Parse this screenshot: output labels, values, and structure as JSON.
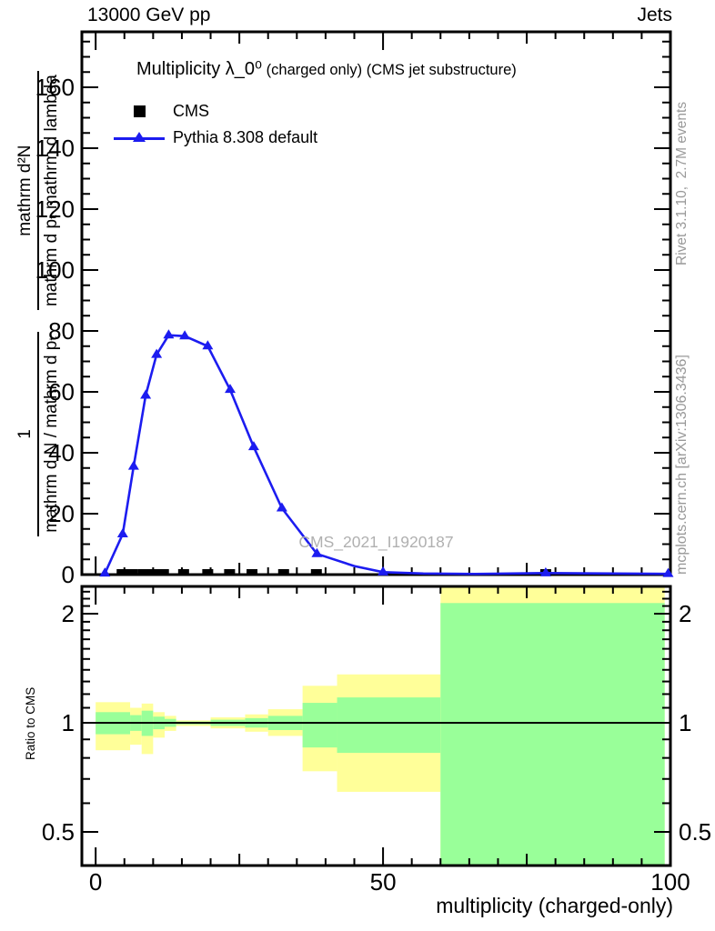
{
  "header": {
    "left": "13000 GeV pp",
    "right": "Jets"
  },
  "title": {
    "main": "Multiplicity λ_0⁰",
    "sub": " (charged only) (CMS jet substructure)"
  },
  "legend": [
    {
      "label": "CMS",
      "marker": "black-square"
    },
    {
      "label": "Pythia 8.308 default",
      "marker": "blue-line-triangle"
    }
  ],
  "watermark": "CMS_2021_I1920187",
  "side_notes": {
    "top_right": "Rivet 3.1.10,  2.7M events",
    "bottom_right": "mcplots.cern.ch [arXiv:1306.3436]"
  },
  "axes": {
    "x_title": "multiplicity (charged-only)",
    "ratio_title": "Ratio to CMS",
    "y_title_fractions": {
      "frac1_num": "1",
      "frac1_den": "mathrm d N / mathrm d pₜ",
      "frac2_num": "mathrm d²N",
      "frac2_den": "mathrm d pₜ mathrm d lambda"
    }
  },
  "colors": {
    "blue": "#1c1cf0",
    "yellow_band": "#ffff99",
    "green_band": "#99ff99",
    "gray_text": "#999999",
    "watermark_gray": "#b0b0b0",
    "black": "#000000"
  },
  "chart_data": {
    "type": "line",
    "title": "Multiplicity λ_0⁰ (charged only) (CMS jet substructure)",
    "xlabel": "multiplicity (charged-only)",
    "ylabel": "1/(dN/dpT) · d²N/(dpT dlambda)",
    "xlim": [
      -2.4,
      100
    ],
    "main_panel": {
      "ylim": [
        0,
        178
      ],
      "y_major_step": 20,
      "y_minor_step": 5,
      "y_tick_labels": [
        "0",
        "20",
        "40",
        "60",
        "80",
        "100",
        "120",
        "140",
        "160"
      ],
      "grid": false
    },
    "x_ticks": {
      "minor_step": 5,
      "medium": [
        25,
        75
      ],
      "major": [
        0,
        50,
        100
      ],
      "labels": [
        "0",
        "50",
        "100"
      ]
    },
    "series": [
      {
        "name": "CMS",
        "type": "scatter",
        "marker": "square",
        "color": "#000000",
        "points": [
          [
            4.6,
            0.5
          ],
          [
            6.4,
            0.5
          ],
          [
            8.3,
            0.5
          ],
          [
            10.1,
            0.5
          ],
          [
            11.8,
            0.5
          ],
          [
            15.3,
            0.5
          ],
          [
            19.5,
            0.5
          ],
          [
            23.3,
            0.5
          ],
          [
            27.2,
            0.5
          ],
          [
            32.7,
            0.5
          ],
          [
            38.4,
            0.5
          ],
          [
            78.3,
            0.5
          ]
        ]
      },
      {
        "name": "Pythia 8.308 default",
        "type": "line",
        "marker": "triangle-up",
        "color": "#1c1cf0",
        "points": [
          [
            1.6,
            0.4
          ],
          [
            4.7,
            13.3
          ],
          [
            6.6,
            35.5
          ],
          [
            8.7,
            58.8
          ],
          [
            10.6,
            72.2
          ],
          [
            12.7,
            78.6
          ],
          [
            15.5,
            78.3
          ],
          [
            19.5,
            75.0
          ],
          [
            23.4,
            60.7
          ],
          [
            27.5,
            41.9
          ],
          [
            32.4,
            21.8
          ],
          [
            38.5,
            6.8
          ],
          [
            50,
            0.8
          ],
          [
            78.3,
            0.5
          ],
          [
            99.6,
            0.25
          ]
        ],
        "line_extra_vertices": [
          [
            45,
            2.8
          ],
          [
            57,
            0.35
          ],
          [
            66,
            0.2
          ]
        ]
      }
    ],
    "ratio_panel": {
      "scale": "log",
      "ylim": [
        0.4,
        2.38
      ],
      "yticks": [
        0.5,
        1,
        2
      ],
      "ytick_labels": [
        "0.5",
        "1",
        "2"
      ],
      "minor_ticks": [
        0.5,
        0.6,
        0.7,
        0.8,
        0.9,
        1.1,
        1.2,
        1.3,
        1.4,
        1.5,
        1.6,
        1.7,
        1.8,
        1.9,
        2.1,
        2.2,
        2.3
      ],
      "reference_line": 1,
      "bands": [
        {
          "x": [
            0,
            6
          ],
          "yellow": [
            0.84,
            1.14
          ],
          "green": [
            0.93,
            1.07
          ]
        },
        {
          "x": [
            6,
            8
          ],
          "yellow": [
            0.87,
            1.1
          ],
          "green": [
            0.95,
            1.05
          ]
        },
        {
          "x": [
            8,
            10
          ],
          "yellow": [
            0.82,
            1.13
          ],
          "green": [
            0.92,
            1.08
          ]
        },
        {
          "x": [
            10,
            12
          ],
          "yellow": [
            0.91,
            1.07
          ],
          "green": [
            0.96,
            1.04
          ]
        },
        {
          "x": [
            12,
            14
          ],
          "yellow": [
            0.95,
            1.045
          ],
          "green": [
            0.975,
            1.025
          ]
        },
        {
          "x": [
            14,
            20
          ],
          "yellow": [
            0.98,
            1.015
          ],
          "green": [
            0.99,
            1.008
          ]
        },
        {
          "x": [
            20,
            26
          ],
          "yellow": [
            0.965,
            1.035
          ],
          "green": [
            0.98,
            1.02
          ]
        },
        {
          "x": [
            26,
            30
          ],
          "yellow": [
            0.945,
            1.055
          ],
          "green": [
            0.97,
            1.03
          ]
        },
        {
          "x": [
            30,
            36
          ],
          "yellow": [
            0.92,
            1.09
          ],
          "green": [
            0.955,
            1.045
          ]
        },
        {
          "x": [
            36,
            42
          ],
          "yellow": [
            0.735,
            1.265
          ],
          "green": [
            0.855,
            1.135
          ]
        },
        {
          "x": [
            42,
            60
          ],
          "yellow": [
            0.645,
            1.36
          ],
          "green": [
            0.826,
            1.175
          ]
        },
        {
          "x": [
            60,
            99
          ],
          "yellow": [
            0.38,
            2.42
          ],
          "green": [
            0.4,
            2.14
          ]
        }
      ]
    }
  }
}
